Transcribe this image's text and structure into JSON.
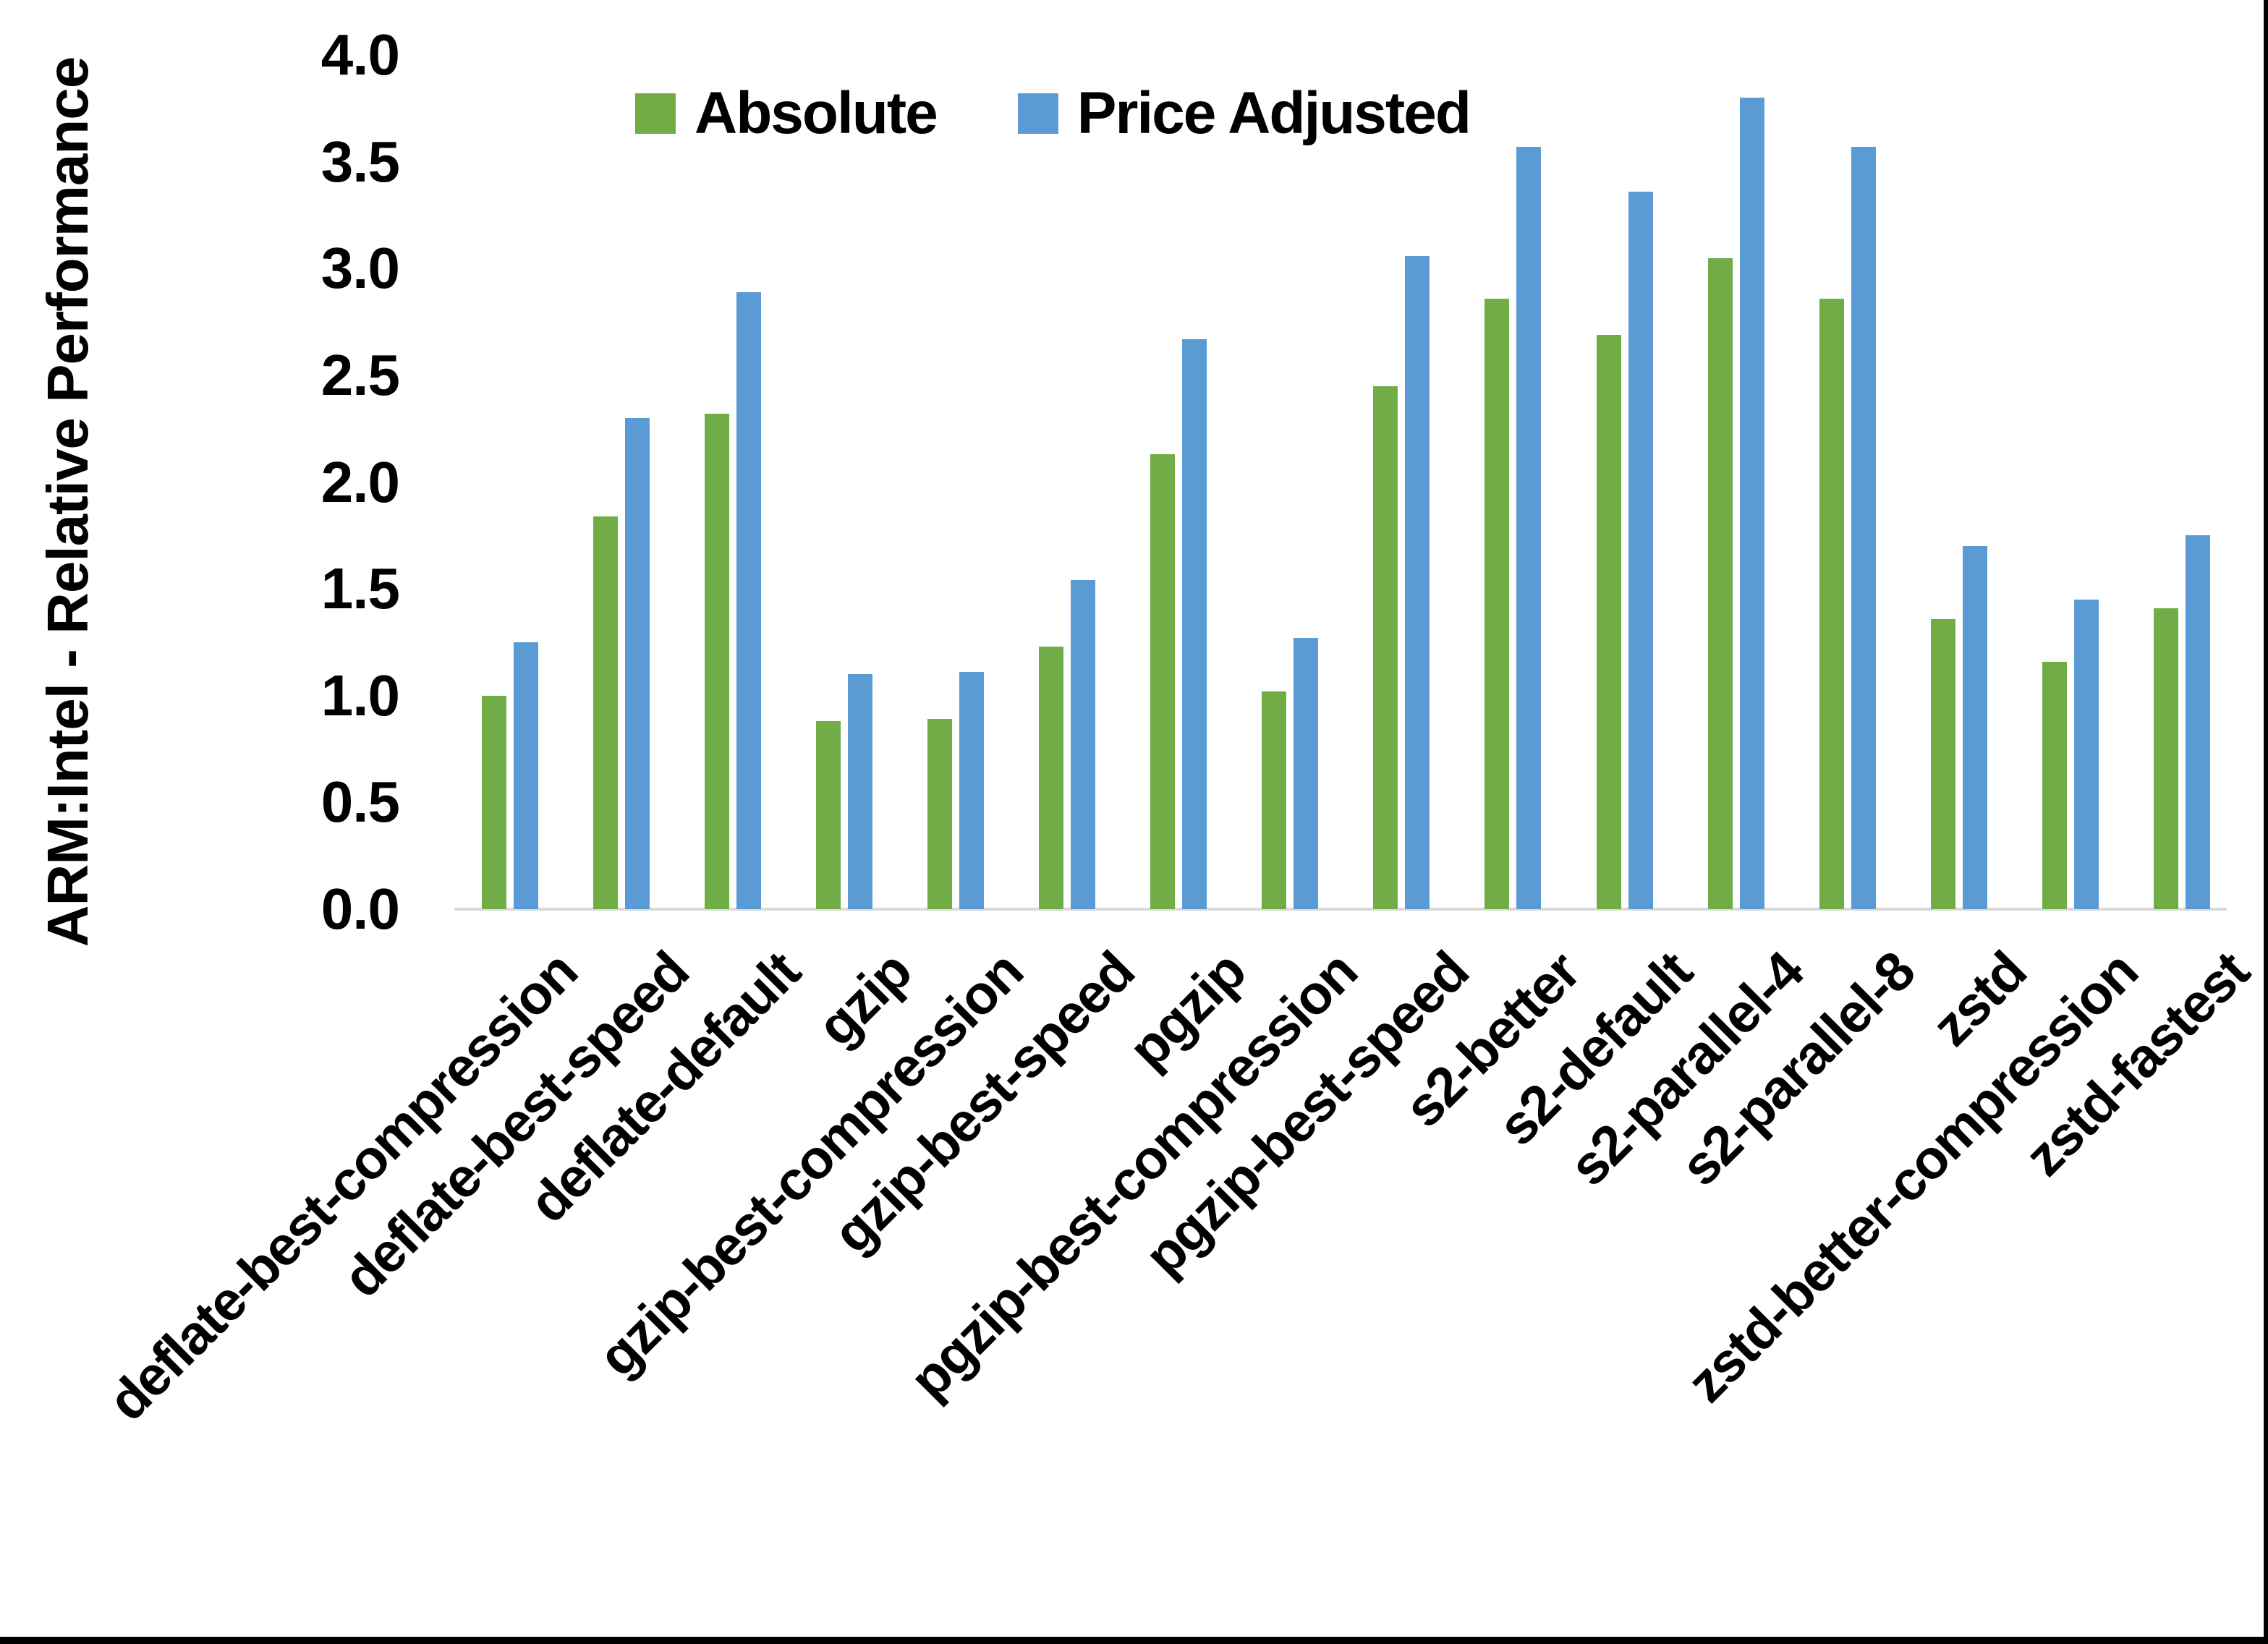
{
  "chart_data": {
    "type": "bar",
    "title": "",
    "ylabel": "ARM:Intel - Relative Performance",
    "xlabel": "",
    "ylim": [
      0.0,
      4.0
    ],
    "ytick_step": 0.5,
    "yticks": [
      "4.0",
      "3.5",
      "3.0",
      "2.5",
      "2.0",
      "1.5",
      "1.0",
      "0.5",
      "0.0"
    ],
    "grid": false,
    "legend_position": "top-center",
    "x_label_rotation_deg": 45,
    "categories": [
      "deflate-best-compression",
      "deflate-best-speed",
      "deflate-default",
      "gzip",
      "gzip-best-compression",
      "gzip-best-speed",
      "pgzip",
      "pgzip-best-compression",
      "pgzip-best-speed",
      "s2-better",
      "s2-default",
      "s2-parallel-4",
      "s2-parallel-8",
      "zstd",
      "zstd-better-compression",
      "zstd-fastest"
    ],
    "series": [
      {
        "name": "Absolute",
        "color": "#70AD47",
        "values": [
          1.0,
          1.84,
          2.32,
          0.88,
          0.89,
          1.23,
          2.13,
          1.02,
          2.45,
          2.86,
          2.69,
          3.05,
          2.86,
          1.36,
          1.16,
          1.41
        ]
      },
      {
        "name": "Price Adjusted",
        "color": "#5B9BD5",
        "values": [
          1.25,
          2.3,
          2.89,
          1.1,
          1.11,
          1.54,
          2.67,
          1.27,
          3.06,
          3.57,
          3.36,
          3.8,
          3.57,
          1.7,
          1.45,
          1.75
        ]
      }
    ]
  },
  "colors": {
    "background": "#FFFFFF",
    "axis_line": "#D9D9D9",
    "text": "#000000",
    "frame": "#000000"
  }
}
